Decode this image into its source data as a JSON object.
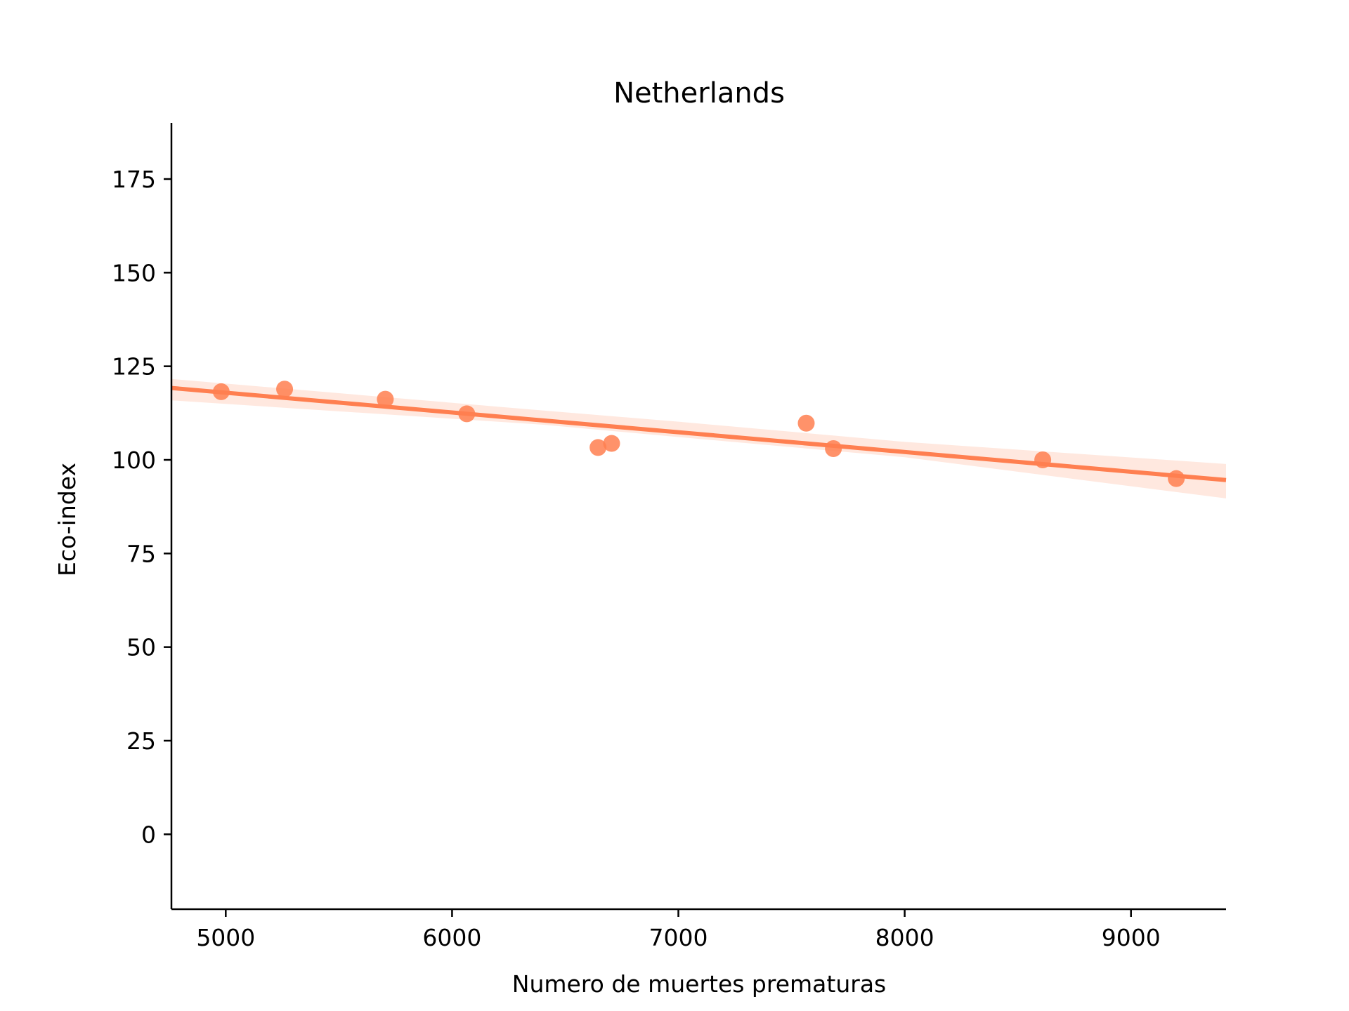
{
  "chart_data": {
    "type": "scatter",
    "title": "Netherlands",
    "xlabel": "Numero de muertes prematuras",
    "ylabel": "Eco-index",
    "xlim": [
      4760,
      9420
    ],
    "ylim": [
      -20,
      190
    ],
    "xticks": [
      5000,
      6000,
      7000,
      8000,
      9000
    ],
    "yticks": [
      0,
      25,
      50,
      75,
      100,
      125,
      150,
      175
    ],
    "grid": false,
    "colors": {
      "points": "#ff7f50",
      "line": "#ff7f50",
      "band": "#ff7f50"
    },
    "points": [
      {
        "x": 4980,
        "y": 118.2
      },
      {
        "x": 5260,
        "y": 118.9
      },
      {
        "x": 5705,
        "y": 116.2
      },
      {
        "x": 6065,
        "y": 112.3
      },
      {
        "x": 6645,
        "y": 103.3
      },
      {
        "x": 6705,
        "y": 104.4
      },
      {
        "x": 7565,
        "y": 109.8
      },
      {
        "x": 7685,
        "y": 103.0
      },
      {
        "x": 8610,
        "y": 100.0
      },
      {
        "x": 9200,
        "y": 95.0
      }
    ],
    "regression": {
      "line": [
        [
          4760,
          119.2
        ],
        [
          9420,
          94.6
        ]
      ],
      "ci_upper": [
        [
          4760,
          121.6
        ],
        [
          6400,
          113.2
        ],
        [
          7000,
          110.2
        ],
        [
          8000,
          104.8
        ],
        [
          9420,
          98.9
        ]
      ],
      "ci_lower": [
        [
          4760,
          115.9
        ],
        [
          6400,
          109.4
        ],
        [
          7000,
          106.1
        ],
        [
          8000,
          100.7
        ],
        [
          9420,
          89.7
        ]
      ]
    }
  }
}
